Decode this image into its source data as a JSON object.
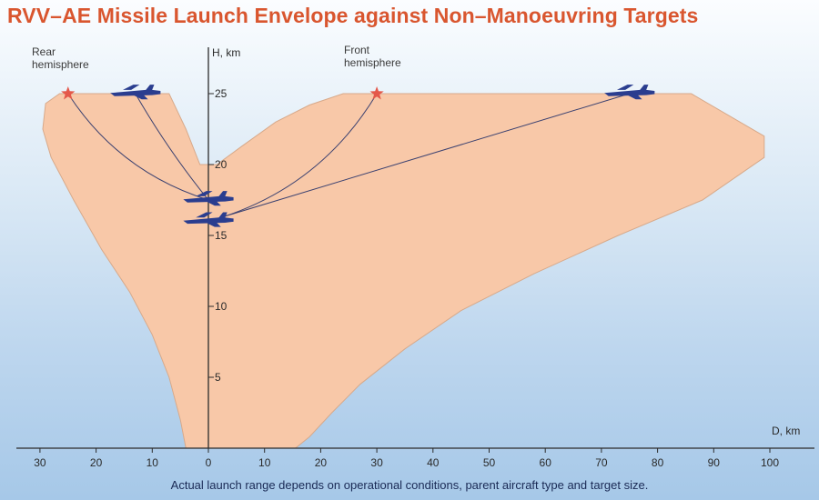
{
  "title": "RVV–AE Missile Launch Envelope against Non–Manoeuvring Targets",
  "caption": "Actual launch range depends on operational conditions, parent aircraft type and target size.",
  "annotations": {
    "rear": [
      "Rear",
      "hemisphere"
    ],
    "front": [
      "Front",
      "hemisphere"
    ]
  },
  "axes": {
    "y_label": "H, km",
    "x_label": "D, km",
    "y_ticks": [
      5,
      10,
      15,
      20,
      25
    ],
    "x_ticks_left": [
      30,
      20,
      10
    ],
    "x_ticks_right": [
      0,
      10,
      20,
      30,
      40,
      50,
      60,
      70,
      80,
      90,
      100
    ]
  },
  "colors": {
    "title": "#d9562f",
    "envelope_fill": "#f8c8a8",
    "envelope_stroke": "#d7a98a",
    "aircraft": "#2a3d8f",
    "star": "#e4584a",
    "trajectory": "#3b4170"
  },
  "envelope": {
    "boundary": [
      [
        -4,
        0
      ],
      [
        -5,
        2
      ],
      [
        -7,
        5
      ],
      [
        -10,
        8
      ],
      [
        -14,
        11
      ],
      [
        -19,
        14
      ],
      [
        -24,
        17.5
      ],
      [
        -28,
        20.5
      ],
      [
        -29.5,
        22.5
      ],
      [
        -29,
        24.3
      ],
      [
        -26.5,
        25
      ],
      [
        -7,
        25
      ],
      [
        -4,
        22.5
      ],
      [
        -1.5,
        20
      ],
      [
        1.5,
        20
      ],
      [
        6,
        21.3
      ],
      [
        12,
        23
      ],
      [
        18,
        24.2
      ],
      [
        24,
        25
      ],
      [
        86,
        25
      ],
      [
        99,
        22
      ],
      [
        99,
        20.5
      ],
      [
        88,
        17.5
      ],
      [
        73,
        15
      ],
      [
        58,
        12.3
      ],
      [
        45,
        9.7
      ],
      [
        35,
        7
      ],
      [
        27,
        4.5
      ],
      [
        22,
        2.5
      ],
      [
        18,
        0.8
      ],
      [
        15.5,
        0
      ]
    ]
  },
  "launch_positions": [
    {
      "d": 0,
      "h": 17.5,
      "icon": "fighter-icon"
    },
    {
      "d": 0,
      "h": 16.0,
      "icon": "fighter-icon"
    }
  ],
  "targets": [
    {
      "d": -13,
      "h": 25,
      "icon": "aircraft-icon"
    },
    {
      "d": 75,
      "h": 25,
      "icon": "aircraft-icon"
    }
  ],
  "intercepts": [
    {
      "d": -25,
      "h": 25,
      "icon": "star-icon"
    },
    {
      "d": 30,
      "h": 25,
      "icon": "star-icon"
    }
  ],
  "trajectories": [
    {
      "from": [
        0,
        17.5
      ],
      "to": [
        -25,
        25
      ],
      "bend": -0.18
    },
    {
      "from": [
        0,
        17.5
      ],
      "to": [
        -13,
        25
      ],
      "bend": -0.04
    },
    {
      "from": [
        0,
        16.0
      ],
      "to": [
        30,
        25
      ],
      "bend": 0.2
    },
    {
      "from": [
        0,
        16.0
      ],
      "to": [
        75,
        25
      ],
      "bend": 0.0
    }
  ]
}
